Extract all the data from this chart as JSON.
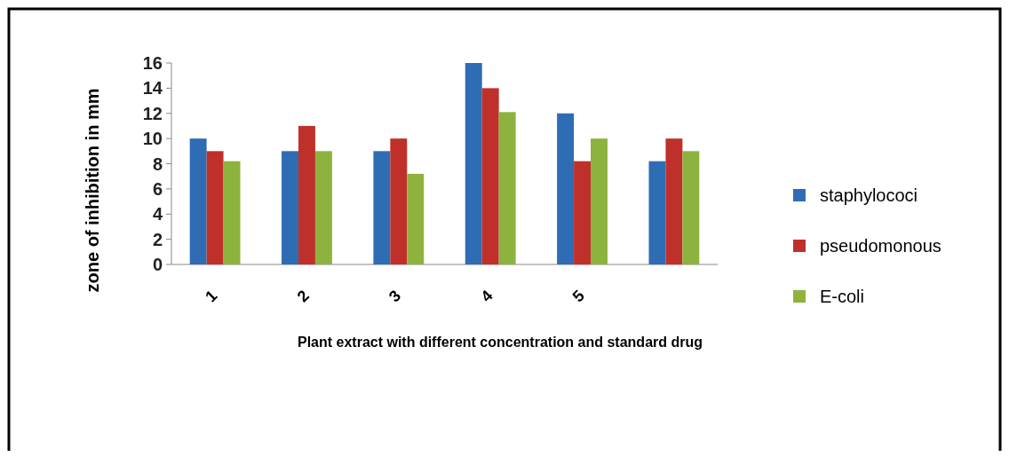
{
  "chart_data": {
    "type": "bar",
    "xlabel": "Plant extract with different concentration and standard drug",
    "ylabel": "zone of inhibition in mm",
    "categories": [
      "1",
      "2",
      "3",
      "4",
      "5",
      null
    ],
    "series": [
      {
        "name": "staphylococi",
        "color": "#2e6db4",
        "values": [
          10,
          9,
          9,
          16,
          12,
          8.2
        ]
      },
      {
        "name": "pseudomonous",
        "color": "#c0302a",
        "values": [
          9,
          11,
          10,
          14,
          8.2,
          10
        ]
      },
      {
        "name": "E-coli",
        "color": "#8db33e",
        "values": [
          8.2,
          9,
          7.2,
          12.1,
          10,
          9
        ]
      }
    ],
    "ylim": [
      0,
      16
    ],
    "yticks": [
      0,
      2,
      4,
      6,
      8,
      10,
      12,
      14,
      16
    ],
    "legend": "right"
  }
}
